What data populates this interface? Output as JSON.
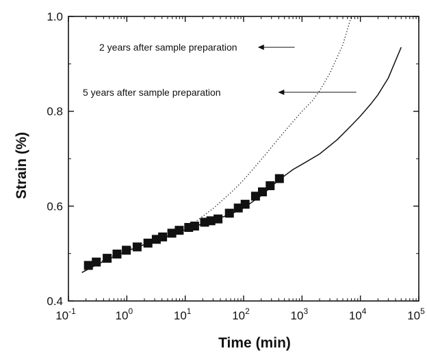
{
  "chart_data": {
    "type": "scatter",
    "xlabel": "Time (min)",
    "ylabel": "Strain (%)",
    "x_scale": "log",
    "xlim": [
      0.1,
      100000
    ],
    "ylim": [
      0.4,
      1.0
    ],
    "grid": false,
    "x_ticks": [
      {
        "value": 0.1,
        "base": "10",
        "exp": "-1"
      },
      {
        "value": 1,
        "base": "10",
        "exp": "0"
      },
      {
        "value": 10,
        "base": "10",
        "exp": "1"
      },
      {
        "value": 100,
        "base": "10",
        "exp": "2"
      },
      {
        "value": 1000,
        "base": "10",
        "exp": "3"
      },
      {
        "value": 10000,
        "base": "10",
        "exp": "4"
      },
      {
        "value": 100000,
        "base": "10",
        "exp": "5"
      }
    ],
    "y_ticks": [
      {
        "value": 0.4,
        "label": "0.4"
      },
      {
        "value": 0.6,
        "label": "0.6"
      },
      {
        "value": 0.8,
        "label": "0.8"
      },
      {
        "value": 1.0,
        "label": "1.0"
      }
    ],
    "series": [
      {
        "style": "markers",
        "marker": "square",
        "color": "#111111",
        "x": [
          0.22,
          0.3,
          0.46,
          0.68,
          0.98,
          1.5,
          2.3,
          3.2,
          4.1,
          5.9,
          7.9,
          11.5,
          14.5,
          21.5,
          27.5,
          36.5,
          57,
          81,
          106,
          160,
          210,
          285,
          410
        ],
        "y": [
          0.475,
          0.482,
          0.49,
          0.499,
          0.507,
          0.514,
          0.522,
          0.53,
          0.535,
          0.543,
          0.549,
          0.555,
          0.558,
          0.566,
          0.569,
          0.573,
          0.585,
          0.596,
          0.604,
          0.621,
          0.63,
          0.643,
          0.658
        ]
      },
      {
        "style": "dotted",
        "color": "#111111",
        "x": [
          0.17,
          0.3,
          0.5,
          1,
          2,
          4,
          8,
          15,
          30,
          60,
          100,
          200,
          400,
          700,
          1000,
          1500,
          2000,
          3000,
          5000,
          7000
        ],
        "y": [
          0.46,
          0.478,
          0.492,
          0.508,
          0.523,
          0.536,
          0.55,
          0.567,
          0.595,
          0.628,
          0.655,
          0.698,
          0.743,
          0.778,
          0.8,
          0.822,
          0.843,
          0.88,
          0.94,
          1.0
        ]
      },
      {
        "style": "solid",
        "color": "#111111",
        "x": [
          0.17,
          0.3,
          0.5,
          1,
          2,
          4,
          8,
          15,
          30,
          60,
          100,
          200,
          400,
          700,
          1000,
          2000,
          4000,
          7000,
          10000,
          15000,
          20000,
          30000,
          50000
        ],
        "y": [
          0.46,
          0.476,
          0.489,
          0.505,
          0.519,
          0.532,
          0.546,
          0.558,
          0.57,
          0.583,
          0.596,
          0.622,
          0.655,
          0.677,
          0.688,
          0.71,
          0.74,
          0.77,
          0.79,
          0.815,
          0.835,
          0.87,
          0.935
        ]
      }
    ],
    "annotations": [
      {
        "text": "2 years after sample preparation",
        "arrow_from_x": 750,
        "arrow_to_x": 180,
        "y": 0.935
      },
      {
        "text": "5 years after sample preparation",
        "arrow_from_x": 8500,
        "arrow_to_x": 400,
        "y": 0.84
      }
    ]
  }
}
